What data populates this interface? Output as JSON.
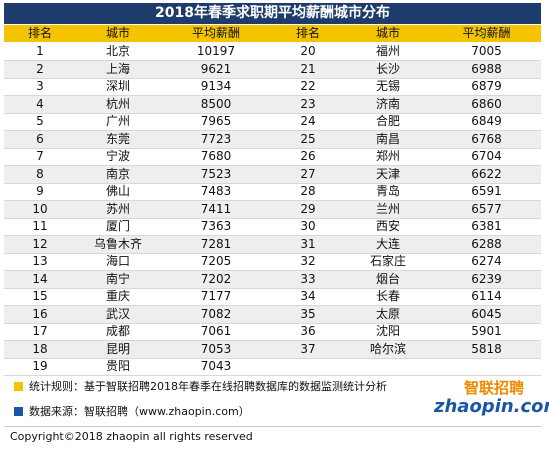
{
  "title": "2018年春季求职期平均薪酬城市分布",
  "colors": {
    "title_bg": "#1d3c6c",
    "header_bg": "#f5c400",
    "note1_square": "#f5c400",
    "note2_square": "#1a55a8",
    "logo_orange": "#f08a00",
    "logo_blue": "#1a55a8"
  },
  "headers": {
    "rank": "排名",
    "city": "城市",
    "salary": "平均薪酬",
    "rank2": "排名",
    "city2": "城市",
    "salary2": "平均薪酬"
  },
  "rows": [
    {
      "rank": "1",
      "city": "北京",
      "salary": "10197",
      "rank2": "20",
      "city2": "福州",
      "salary2": "7005"
    },
    {
      "rank": "2",
      "city": "上海",
      "salary": "9621",
      "rank2": "21",
      "city2": "长沙",
      "salary2": "6988"
    },
    {
      "rank": "3",
      "city": "深圳",
      "salary": "9134",
      "rank2": "22",
      "city2": "无锡",
      "salary2": "6879"
    },
    {
      "rank": "4",
      "city": "杭州",
      "salary": "8500",
      "rank2": "23",
      "city2": "济南",
      "salary2": "6860"
    },
    {
      "rank": "5",
      "city": "广州",
      "salary": "7965",
      "rank2": "24",
      "city2": "合肥",
      "salary2": "6849"
    },
    {
      "rank": "6",
      "city": "东莞",
      "salary": "7723",
      "rank2": "25",
      "city2": "南昌",
      "salary2": "6768"
    },
    {
      "rank": "7",
      "city": "宁波",
      "salary": "7680",
      "rank2": "26",
      "city2": "郑州",
      "salary2": "6704"
    },
    {
      "rank": "8",
      "city": "南京",
      "salary": "7523",
      "rank2": "27",
      "city2": "天津",
      "salary2": "6622"
    },
    {
      "rank": "9",
      "city": "佛山",
      "salary": "7483",
      "rank2": "28",
      "city2": "青岛",
      "salary2": "6591"
    },
    {
      "rank": "10",
      "city": "苏州",
      "salary": "7411",
      "rank2": "29",
      "city2": "兰州",
      "salary2": "6577"
    },
    {
      "rank": "11",
      "city": "厦门",
      "salary": "7363",
      "rank2": "30",
      "city2": "西安",
      "salary2": "6381"
    },
    {
      "rank": "12",
      "city": "乌鲁木齐",
      "salary": "7281",
      "rank2": "31",
      "city2": "大连",
      "salary2": "6288"
    },
    {
      "rank": "13",
      "city": "海口",
      "salary": "7205",
      "rank2": "32",
      "city2": "石家庄",
      "salary2": "6274"
    },
    {
      "rank": "14",
      "city": "南宁",
      "salary": "7202",
      "rank2": "33",
      "city2": "烟台",
      "salary2": "6239"
    },
    {
      "rank": "15",
      "city": "重庆",
      "salary": "7177",
      "rank2": "34",
      "city2": "长春",
      "salary2": "6114"
    },
    {
      "rank": "16",
      "city": "武汉",
      "salary": "7082",
      "rank2": "35",
      "city2": "太原",
      "salary2": "6045"
    },
    {
      "rank": "17",
      "city": "成都",
      "salary": "7061",
      "rank2": "36",
      "city2": "沈阳",
      "salary2": "5901"
    },
    {
      "rank": "18",
      "city": "昆明",
      "salary": "7053",
      "rank2": "37",
      "city2": "哈尔滨",
      "salary2": "5818"
    },
    {
      "rank": "19",
      "city": "贵阳",
      "salary": "7043",
      "rank2": "",
      "city2": "",
      "salary2": ""
    }
  ],
  "notes": {
    "stat_rule": "统计规则：基于智联招聘2018年春季在线招聘数据库的数据监测统计分析",
    "data_source": "数据来源：智联招聘（www.zhaopin.com）"
  },
  "logo": {
    "cn": "智联招聘",
    "en": "zhaopin.com"
  },
  "copyright": "Copyright©2018 zhaopin all rights reserved"
}
